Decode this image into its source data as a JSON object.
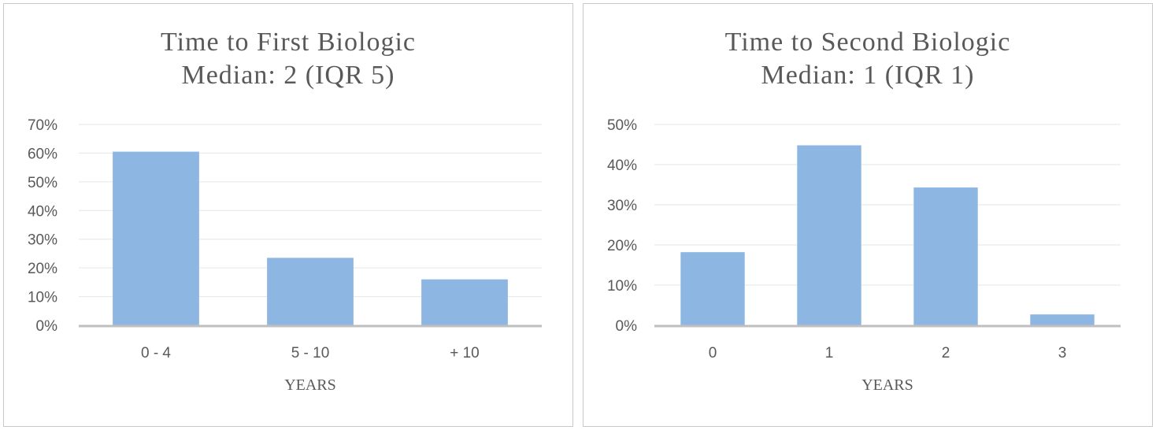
{
  "chart_data": [
    {
      "type": "bar",
      "title": "Time to First Biologic",
      "subtitle": "Median: 2 (IQR 5)",
      "categories": [
        "0 - 4",
        "5 - 10",
        "+ 10"
      ],
      "values": [
        60.5,
        23.5,
        16
      ],
      "xlabel": "YEARS",
      "ylabel": "",
      "ylim": [
        0,
        70
      ],
      "yticks": [
        "0%",
        "10%",
        "20%",
        "30%",
        "40%",
        "50%",
        "60%",
        "70%"
      ],
      "grid": true,
      "bar_color": "#8db6e2"
    },
    {
      "type": "bar",
      "title": "Time to Second Biologic",
      "subtitle": "Median: 1 (IQR 1)",
      "categories": [
        "0",
        "1",
        "2",
        "3"
      ],
      "values": [
        18.2,
        44.8,
        34.3,
        2.7
      ],
      "xlabel": "YEARS",
      "ylabel": "",
      "ylim": [
        0,
        50
      ],
      "yticks": [
        "0%",
        "10%",
        "20%",
        "30%",
        "40%",
        "50%"
      ],
      "grid": true,
      "bar_color": "#8db6e2"
    }
  ]
}
